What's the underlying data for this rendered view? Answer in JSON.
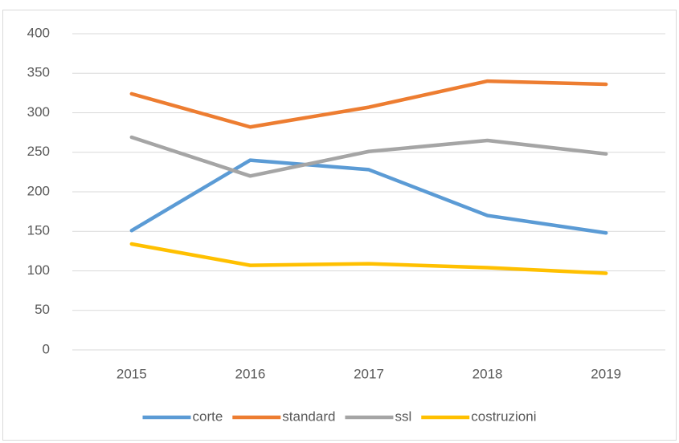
{
  "chart_data": {
    "type": "line",
    "categories": [
      "2015",
      "2016",
      "2017",
      "2018",
      "2019"
    ],
    "series": [
      {
        "name": "corte",
        "color": "#5b9bd5",
        "values": [
          151,
          240,
          228,
          170,
          148
        ]
      },
      {
        "name": "standard",
        "color": "#ed7d31",
        "values": [
          324,
          282,
          307,
          340,
          336
        ]
      },
      {
        "name": "ssl",
        "color": "#a5a5a5",
        "values": [
          269,
          220,
          251,
          265,
          248
        ]
      },
      {
        "name": "costruzioni",
        "color": "#ffc000",
        "values": [
          134,
          107,
          109,
          104,
          97
        ]
      }
    ],
    "ylim": [
      0,
      400
    ],
    "yticks": [
      0,
      50,
      100,
      150,
      200,
      250,
      300,
      350,
      400
    ],
    "grid": true,
    "legend": "bottom"
  }
}
